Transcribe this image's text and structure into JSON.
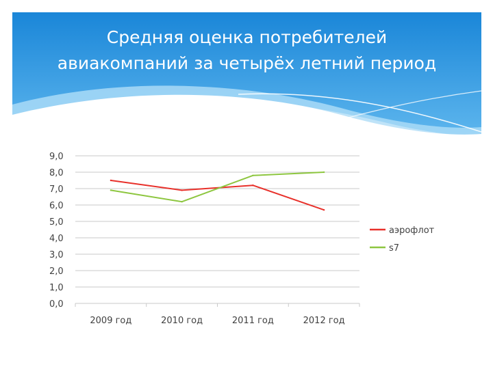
{
  "slide": {
    "title_line1": "Средняя оценка потребителей",
    "title_line2": "авиакомпаний за четырёх летний период",
    "colors": {
      "header_top": "#1a86d8",
      "header_bottom": "#5fb7ee",
      "title_text": "#ffffff"
    }
  },
  "chart_data": {
    "type": "line",
    "title": "",
    "xlabel": "",
    "ylabel": "",
    "categories": [
      "2009 год",
      "2010 год",
      "2011 год",
      "2012 год"
    ],
    "y_ticks": [
      "0,0",
      "1,0",
      "2,0",
      "3,0",
      "4,0",
      "5,0",
      "6,0",
      "7,0",
      "8,0",
      "9,0"
    ],
    "ylim": [
      0,
      9
    ],
    "grid": true,
    "legend_position": "right",
    "series": [
      {
        "name": "аэрофлот",
        "color": "#e8302a",
        "values": [
          7.5,
          6.9,
          7.2,
          5.7
        ]
      },
      {
        "name": "s7",
        "color": "#8dc63f",
        "values": [
          6.9,
          6.2,
          7.8,
          8.0
        ]
      }
    ]
  }
}
